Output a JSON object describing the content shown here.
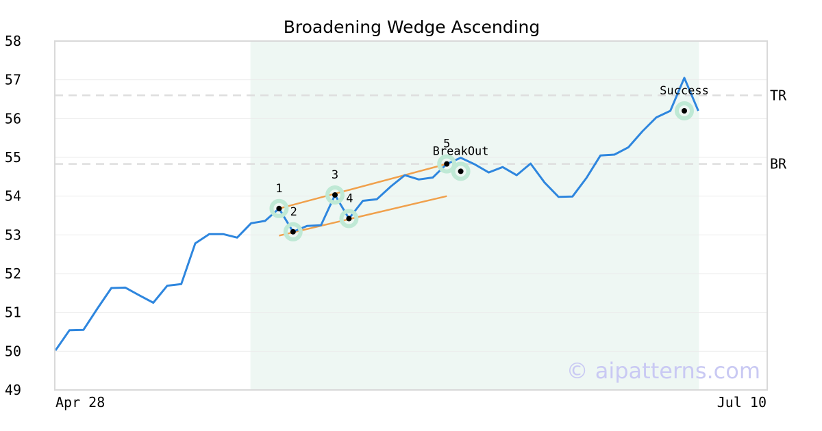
{
  "chart_data": {
    "type": "line",
    "title": "Broadening Wedge Ascending",
    "xlabel": "",
    "ylabel": "",
    "ylim": [
      49,
      58
    ],
    "yticks": [
      "49",
      "50",
      "51",
      "52",
      "53",
      "54",
      "55",
      "56",
      "57",
      "58"
    ],
    "x_start_label": "Apr 28",
    "x_end_label": "Jul 10",
    "series": [
      {
        "values": [
          50.02,
          50.54,
          50.55,
          51.1,
          51.63,
          51.64,
          51.44,
          51.25,
          51.69,
          51.73,
          52.78,
          53.02,
          53.02,
          52.93,
          53.3,
          53.36,
          53.68,
          53.08,
          53.23,
          53.25,
          54.03,
          53.42,
          53.88,
          53.92,
          54.25,
          54.54,
          54.43,
          54.48,
          54.83,
          54.99,
          54.82,
          54.61,
          54.75,
          54.54,
          54.84,
          54.35,
          53.98,
          53.99,
          54.47,
          55.05,
          55.07,
          55.26,
          55.67,
          56.03,
          56.2,
          57.05,
          56.2
        ],
        "color": "#2e86de"
      }
    ],
    "highlight_region": {
      "start_index": 14,
      "end_index": 46,
      "color": "#eef7f3"
    },
    "reference_lines": [
      {
        "label": "TR",
        "value": 56.6
      },
      {
        "label": "BR",
        "value": 54.83
      }
    ],
    "trendlines": [
      {
        "from": {
          "index": 16,
          "value": 53.68
        },
        "to": {
          "index": 28,
          "value": 54.83
        },
        "color": "#f0a04b"
      },
      {
        "from": {
          "index": 16,
          "value": 52.98
        },
        "to": {
          "index": 28,
          "value": 54.0
        },
        "color": "#f0a04b"
      }
    ],
    "pattern_points": [
      {
        "label": "1",
        "index": 16,
        "value": 53.68
      },
      {
        "label": "2",
        "index": 17,
        "value": 53.08
      },
      {
        "label": "3",
        "index": 20,
        "value": 54.03
      },
      {
        "label": "4",
        "index": 21,
        "value": 53.42
      },
      {
        "label": "5",
        "index": 28,
        "value": 54.83
      }
    ],
    "markers": [
      {
        "label": "BreakOut",
        "index": 29,
        "value": 54.64
      },
      {
        "label": "Success",
        "index": 45,
        "value": 56.2
      }
    ],
    "watermark": "© aipatterns.com"
  }
}
